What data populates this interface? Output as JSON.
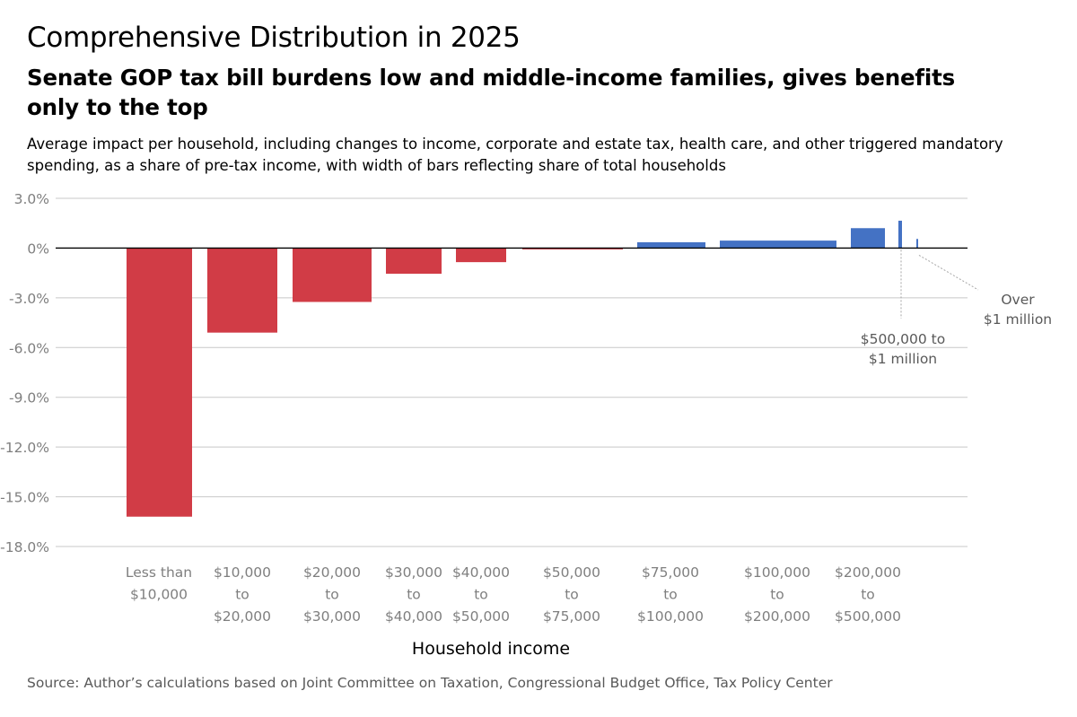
{
  "header": {
    "title": "Comprehensive Distribution in 2025",
    "subtitle": "Senate GOP tax bill burdens low and middle-income families, gives benefits only to the top",
    "description": "Average impact per household, including changes to income, corporate and estate tax, health care, and other triggered mandatory spending, as a share of pre-tax income, with width of bars reflecting share of total households"
  },
  "footer": {
    "source": "Source: Author’s calculations based on Joint Committee on Taxation, Congressional Budget Office, Tax Policy Center"
  },
  "colors": {
    "negative": "#d13c46",
    "positive": "#4472c4",
    "grid": "#c8c8c8",
    "axis_text": "#7f7f7f",
    "callout_text": "#595959"
  },
  "chart_data": {
    "type": "bar",
    "variable_width": true,
    "title": "",
    "xlabel": "Household income",
    "ylabel": "",
    "ylim": [
      -18,
      3
    ],
    "y_ticks": [
      3,
      0,
      -3,
      -6,
      -9,
      -12,
      -15,
      -18
    ],
    "y_tick_labels": [
      "3.0%",
      "0%",
      "-3.0%",
      "-6.0%",
      "-9.0%",
      "-12.0%",
      "-15.0%",
      "-18.0%"
    ],
    "grid": true,
    "legend": "none",
    "categories": [
      [
        "Less than",
        "$10,000"
      ],
      [
        "$10,000",
        "to",
        "$20,000"
      ],
      [
        "$20,000",
        "to",
        "$30,000"
      ],
      [
        "$30,000",
        "to",
        "$40,000"
      ],
      [
        "$40,000",
        "to",
        "$50,000"
      ],
      [
        "$50,000",
        "to",
        "$75,000"
      ],
      [
        "$75,000",
        "to",
        "$100,000"
      ],
      [
        "$100,000",
        "to",
        "$200,000"
      ],
      [
        "$200,000",
        "to",
        "$500,000"
      ],
      [
        "$500,000 to",
        "$1 million"
      ],
      [
        "Over",
        "$1 million"
      ]
    ],
    "values": [
      -16.2,
      -5.1,
      -3.25,
      -1.55,
      -0.85,
      -0.05,
      0.35,
      0.45,
      1.2,
      1.65,
      0.55
    ],
    "household_share_pct": [
      6.6,
      7.1,
      8.0,
      6.0,
      4.1,
      9.9,
      6.7,
      11.7,
      3.1,
      0.3,
      0.2
    ],
    "callouts": [
      "$500,000 to $1 million",
      "Over $1 million"
    ]
  }
}
